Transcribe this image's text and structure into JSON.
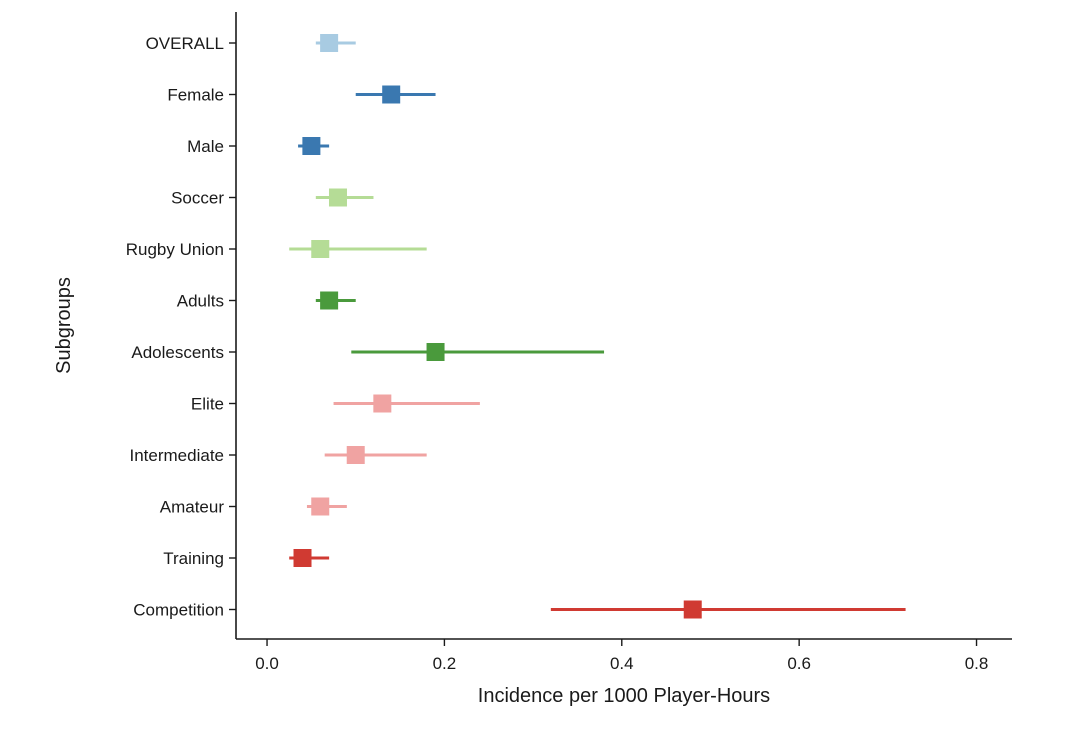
{
  "chart_data": {
    "type": "forest",
    "xlabel": "Incidence per 1000 Player-Hours",
    "ylabel": "Subgroups",
    "xlim": [
      -0.035,
      0.84
    ],
    "xticks": [
      0.0,
      0.2,
      0.4,
      0.6,
      0.8
    ],
    "xtick_labels": [
      "0.0",
      "0.2",
      "0.4",
      "0.6",
      "0.8"
    ],
    "grid": false,
    "legend": "none",
    "rows": [
      {
        "label": "OVERALL",
        "estimate": 0.07,
        "lower": 0.055,
        "upper": 0.1,
        "color": "#a8cbe2"
      },
      {
        "label": "Female",
        "estimate": 0.14,
        "lower": 0.1,
        "upper": 0.19,
        "color": "#3a78b0"
      },
      {
        "label": "Male",
        "estimate": 0.05,
        "lower": 0.035,
        "upper": 0.07,
        "color": "#3a78b0"
      },
      {
        "label": "Soccer",
        "estimate": 0.08,
        "lower": 0.055,
        "upper": 0.12,
        "color": "#b5dc96"
      },
      {
        "label": "Rugby Union",
        "estimate": 0.06,
        "lower": 0.025,
        "upper": 0.18,
        "color": "#b5dc96"
      },
      {
        "label": "Adults",
        "estimate": 0.07,
        "lower": 0.055,
        "upper": 0.1,
        "color": "#4a9a3c"
      },
      {
        "label": "Adolescents",
        "estimate": 0.19,
        "lower": 0.095,
        "upper": 0.38,
        "color": "#4a9a3c"
      },
      {
        "label": "Elite",
        "estimate": 0.13,
        "lower": 0.075,
        "upper": 0.24,
        "color": "#f0a3a2"
      },
      {
        "label": "Intermediate",
        "estimate": 0.1,
        "lower": 0.065,
        "upper": 0.18,
        "color": "#f0a3a2"
      },
      {
        "label": "Amateur",
        "estimate": 0.06,
        "lower": 0.045,
        "upper": 0.09,
        "color": "#f0a3a2"
      },
      {
        "label": "Training",
        "estimate": 0.04,
        "lower": 0.025,
        "upper": 0.07,
        "color": "#d03a32"
      },
      {
        "label": "Competition",
        "estimate": 0.48,
        "lower": 0.32,
        "upper": 0.72,
        "color": "#d03a32"
      }
    ]
  }
}
